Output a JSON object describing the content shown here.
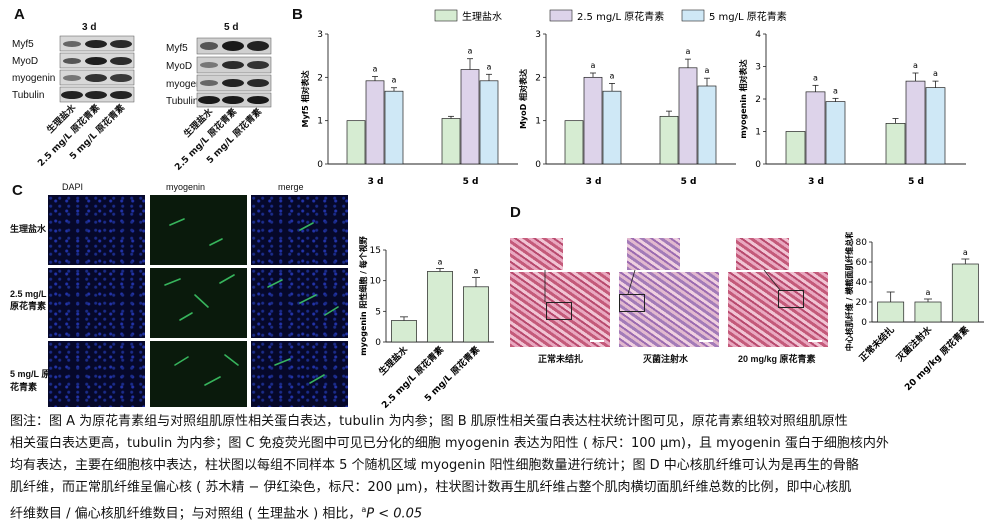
{
  "panels": {
    "a": "A",
    "b": "B",
    "c": "C",
    "d": "D"
  },
  "panel_a": {
    "groups": [
      {
        "time": "3 d",
        "bands": [
          "Myf5",
          "MyoD",
          "myogenin",
          "Tubulin"
        ]
      },
      {
        "time": "5 d",
        "bands": [
          "Myf5",
          "MyoD",
          "myogenin",
          "Tubulin"
        ]
      }
    ],
    "lanes": [
      "生理盐水",
      "2.5 mg/L 原花青素",
      "5 mg/L 原花青素"
    ]
  },
  "panel_c": {
    "columns": [
      "DAPI",
      "myogenin",
      "merge"
    ],
    "rows": [
      "生理盐水",
      "2.5 mg/L 原花青素",
      "5 mg/L 原花青素"
    ]
  },
  "panel_d": {
    "images": [
      "正常未结扎",
      "灭菌注射水",
      "20 mg/kg 原花青素"
    ]
  },
  "chart_data": [
    {
      "id": "b1",
      "type": "bar",
      "categories": [
        "3 d",
        "5 d"
      ],
      "series": [
        {
          "name": "生理盐水",
          "values": [
            1.0,
            1.05
          ],
          "errors": [
            0.0,
            0.05
          ]
        },
        {
          "name": "2.5 mg/L 原花青素",
          "values": [
            1.92,
            2.18
          ],
          "errors": [
            0.1,
            0.25
          ]
        },
        {
          "name": "5 mg/L 原花青素",
          "values": [
            1.68,
            1.92
          ],
          "errors": [
            0.08,
            0.15
          ]
        }
      ],
      "annotations": [
        "",
        "",
        "",
        "",
        "a",
        "a",
        "a",
        "a"
      ],
      "ylabel": "Myf5 相对表达",
      "ylim": [
        0,
        3
      ],
      "yticks": [
        0,
        1,
        2,
        3
      ],
      "legend": "top"
    },
    {
      "id": "b2",
      "type": "bar",
      "categories": [
        "3 d",
        "5 d"
      ],
      "series": [
        {
          "name": "生理盐水",
          "values": [
            1.0,
            1.1
          ],
          "errors": [
            0.0,
            0.12
          ]
        },
        {
          "name": "2.5 mg/L 原花青素",
          "values": [
            2.0,
            2.22
          ],
          "errors": [
            0.1,
            0.2
          ]
        },
        {
          "name": "5 mg/L 原花青素",
          "values": [
            1.68,
            1.8
          ],
          "errors": [
            0.18,
            0.18
          ]
        }
      ],
      "annotations": [
        "",
        "",
        "",
        "",
        "a",
        "a",
        "a",
        "a"
      ],
      "ylabel": "MyoD 相对表达",
      "ylim": [
        0,
        3
      ],
      "yticks": [
        0,
        1,
        2,
        3
      ],
      "legend": "top"
    },
    {
      "id": "b3",
      "type": "bar",
      "categories": [
        "3 d",
        "5 d"
      ],
      "series": [
        {
          "name": "生理盐水",
          "values": [
            1.0,
            1.25
          ],
          "errors": [
            0.0,
            0.15
          ]
        },
        {
          "name": "2.5 mg/L 原花青素",
          "values": [
            2.22,
            2.55
          ],
          "errors": [
            0.2,
            0.25
          ]
        },
        {
          "name": "5 mg/L 原花青素",
          "values": [
            1.92,
            2.35
          ],
          "errors": [
            0.1,
            0.2
          ]
        }
      ],
      "annotations": [
        "",
        "",
        "",
        "",
        "a",
        "a",
        "a",
        "a"
      ],
      "ylabel": "myogenin 相对表达",
      "ylim": [
        0,
        4
      ],
      "yticks": [
        0,
        1,
        2,
        3,
        4
      ],
      "legend": "top"
    },
    {
      "id": "c",
      "type": "bar",
      "categories": [
        "生理盐水",
        "2.5 mg/L 原花青素",
        "5 mg/L 原花青素"
      ],
      "values": [
        3.5,
        11.5,
        9.0
      ],
      "errors": [
        0.6,
        0.5,
        1.5
      ],
      "annotations": [
        "",
        "a",
        "a"
      ],
      "ylabel": "myogenin 阳性细胞 / 每个视野",
      "ylim": [
        0,
        15
      ],
      "yticks": [
        0,
        5,
        10,
        15
      ]
    },
    {
      "id": "d",
      "type": "bar",
      "categories": [
        "正常未结扎",
        "灭菌注射水",
        "20 mg/kg 原花青素"
      ],
      "values": [
        20,
        20,
        58
      ],
      "errors": [
        10,
        3,
        5
      ],
      "annotations": [
        "",
        "a",
        "a"
      ],
      "ylabel": "中心核肌纤维 / 横截面肌纤维总和 (%)",
      "ylim": [
        0,
        80
      ],
      "yticks": [
        0,
        20,
        40,
        60,
        80
      ]
    }
  ],
  "colors": {
    "saline": "#d6ecd2",
    "low": "#ddd3ea",
    "high": "#cfe8f6",
    "bar_edge": "#222222"
  },
  "caption": {
    "line1": "图注：图 A 为原花青素组与对照组肌原性相关蛋白表达，tubulin 为内参；图 B 肌原性相关蛋白表达柱状统计图可见，原花青素组较对照组肌原性",
    "line2": "相关蛋白表达更高，tubulin 为内参；图 C 免疫荧光图中可见已分化的细胞 myogenin 表达为阳性 ( 标尺：100 μm)，且 myogenin 蛋白于细胞核内外",
    "line3": "均有表达，主要在细胞核中表达，柱状图以每组不同样本 5 个随机区域 myogenin 阳性细胞数量进行统计；图 D 中心核肌纤维可认为是再生的骨骼",
    "line4": "肌纤维，而正常肌纤维呈偏心核 ( 苏木精 − 伊红染色，标尺：200 μm)，柱状图计数再生肌纤维占整个肌肉横切面肌纤维总数的比例，即中心核肌",
    "line5": "纤维数目 / 偏心核肌纤维数目；与对照组 ( 生理盐水 ) 相比，",
    "sig": "a",
    "p": "P < 0.05"
  }
}
